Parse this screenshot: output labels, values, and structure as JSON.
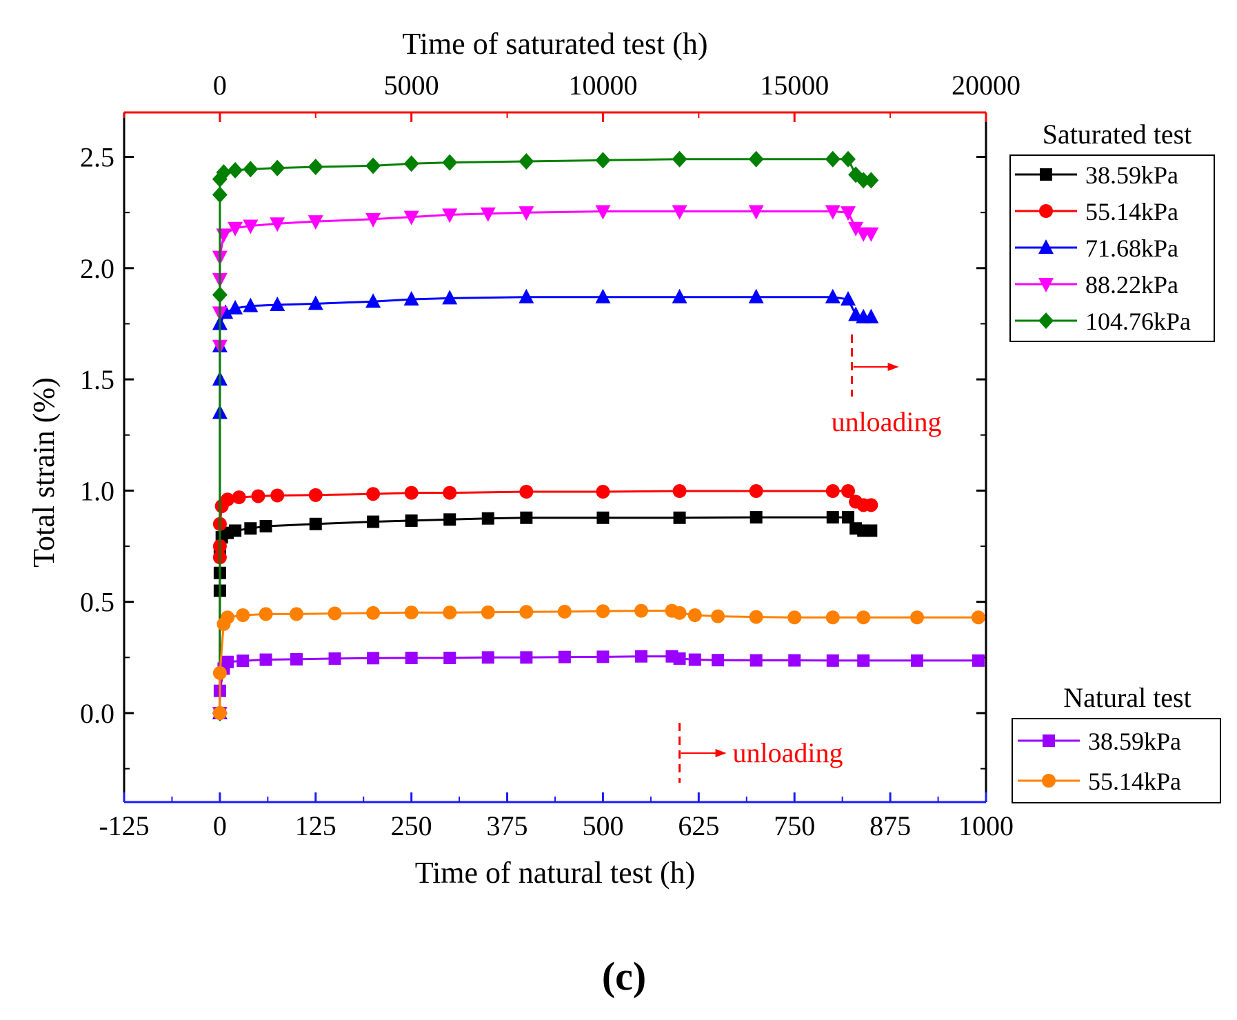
{
  "chart_data": {
    "type": "line",
    "panel_label": "(c)",
    "x_bottom": {
      "title": "Time of natural test  (h)",
      "range": [
        -125,
        1000
      ],
      "ticks": [
        -125,
        0,
        125,
        250,
        375,
        500,
        625,
        750,
        875,
        1000
      ],
      "tick_labels": [
        "-125",
        "0",
        "125",
        "250",
        "375",
        "500",
        "625",
        "750",
        "875",
        "1000"
      ],
      "color": "#1a1aff"
    },
    "x_top": {
      "title": "Time of saturated test  (h)",
      "range": [
        -2500,
        20000
      ],
      "ticks": [
        0,
        5000,
        10000,
        15000,
        20000
      ],
      "tick_labels": [
        "0",
        "5000",
        "10000",
        "15000",
        "20000"
      ],
      "color": "#ff0000"
    },
    "y": {
      "title": "Total strain (%)",
      "range": [
        -0.4,
        2.7
      ],
      "ticks": [
        0.0,
        0.5,
        1.0,
        1.5,
        2.0,
        2.5
      ],
      "tick_labels": [
        "0.0",
        "0.5",
        "1.0",
        "1.5",
        "2.0",
        "2.5"
      ]
    },
    "legend_saturated": {
      "title": "Saturated test",
      "entries": [
        "38.59kPa",
        "55.14kPa",
        "71.68kPa",
        "88.22kPa",
        "104.76kPa"
      ]
    },
    "legend_natural": {
      "title": "Natural test",
      "entries": [
        "38.59kPa",
        "55.14kPa"
      ]
    },
    "annotations": [
      {
        "text": "unloading",
        "axis": "saturated",
        "x": 16500,
        "color": "#ff0000"
      },
      {
        "text": "unloading",
        "axis": "natural",
        "x": 600,
        "color": "#ff0000"
      }
    ],
    "series": [
      {
        "name": "38.59kPa",
        "group": "Saturated test",
        "axis": "top",
        "marker": "square",
        "color": "#000000",
        "points": [
          [
            0,
            0
          ],
          [
            0,
            0.55
          ],
          [
            0,
            0.63
          ],
          [
            0,
            0.72
          ],
          [
            50,
            0.79
          ],
          [
            200,
            0.81
          ],
          [
            400,
            0.82
          ],
          [
            800,
            0.83
          ],
          [
            1200,
            0.84
          ],
          [
            2500,
            0.85
          ],
          [
            4000,
            0.86
          ],
          [
            5000,
            0.865
          ],
          [
            6000,
            0.87
          ],
          [
            7000,
            0.875
          ],
          [
            8000,
            0.878
          ],
          [
            10000,
            0.878
          ],
          [
            12000,
            0.878
          ],
          [
            14000,
            0.88
          ],
          [
            16000,
            0.88
          ],
          [
            16400,
            0.88
          ],
          [
            16600,
            0.83
          ],
          [
            16800,
            0.82
          ],
          [
            17000,
            0.82
          ]
        ]
      },
      {
        "name": "55.14kPa",
        "group": "Saturated test",
        "axis": "top",
        "marker": "circle",
        "color": "#ff0000",
        "points": [
          [
            0,
            0
          ],
          [
            0,
            0.7
          ],
          [
            0,
            0.75
          ],
          [
            0,
            0.85
          ],
          [
            50,
            0.93
          ],
          [
            200,
            0.96
          ],
          [
            500,
            0.97
          ],
          [
            1000,
            0.975
          ],
          [
            1500,
            0.978
          ],
          [
            2500,
            0.98
          ],
          [
            4000,
            0.985
          ],
          [
            5000,
            0.99
          ],
          [
            6000,
            0.99
          ],
          [
            8000,
            0.995
          ],
          [
            10000,
            0.995
          ],
          [
            12000,
            0.998
          ],
          [
            14000,
            0.998
          ],
          [
            16000,
            0.998
          ],
          [
            16400,
            0.998
          ],
          [
            16600,
            0.95
          ],
          [
            16800,
            0.935
          ],
          [
            17000,
            0.935
          ]
        ]
      },
      {
        "name": "71.68kPa",
        "group": "Saturated test",
        "axis": "top",
        "marker": "triangle-up",
        "color": "#0000ff",
        "points": [
          [
            0,
            0
          ],
          [
            0,
            1.35
          ],
          [
            0,
            1.5
          ],
          [
            0,
            1.65
          ],
          [
            0,
            1.75
          ],
          [
            150,
            1.8
          ],
          [
            400,
            1.82
          ],
          [
            800,
            1.83
          ],
          [
            1500,
            1.835
          ],
          [
            2500,
            1.84
          ],
          [
            4000,
            1.85
          ],
          [
            5000,
            1.86
          ],
          [
            6000,
            1.865
          ],
          [
            8000,
            1.87
          ],
          [
            10000,
            1.87
          ],
          [
            12000,
            1.87
          ],
          [
            14000,
            1.87
          ],
          [
            16000,
            1.87
          ],
          [
            16400,
            1.86
          ],
          [
            16600,
            1.79
          ],
          [
            16800,
            1.78
          ],
          [
            17000,
            1.78
          ]
        ]
      },
      {
        "name": "88.22kPa",
        "group": "Saturated test",
        "axis": "top",
        "marker": "triangle-down",
        "color": "#ff00ff",
        "points": [
          [
            0,
            0
          ],
          [
            0,
            1.65
          ],
          [
            0,
            1.8
          ],
          [
            0,
            1.95
          ],
          [
            0,
            2.05
          ],
          [
            100,
            2.15
          ],
          [
            400,
            2.18
          ],
          [
            800,
            2.19
          ],
          [
            1500,
            2.2
          ],
          [
            2500,
            2.21
          ],
          [
            4000,
            2.22
          ],
          [
            5000,
            2.23
          ],
          [
            6000,
            2.24
          ],
          [
            7000,
            2.245
          ],
          [
            8000,
            2.25
          ],
          [
            10000,
            2.255
          ],
          [
            12000,
            2.255
          ],
          [
            14000,
            2.255
          ],
          [
            16000,
            2.255
          ],
          [
            16400,
            2.25
          ],
          [
            16600,
            2.18
          ],
          [
            16800,
            2.155
          ],
          [
            17000,
            2.155
          ]
        ]
      },
      {
        "name": "104.76kPa",
        "group": "Saturated test",
        "axis": "top",
        "marker": "diamond",
        "color": "#008000",
        "points": [
          [
            0,
            0
          ],
          [
            0,
            1.88
          ],
          [
            0,
            2.33
          ],
          [
            0,
            2.4
          ],
          [
            100,
            2.43
          ],
          [
            400,
            2.44
          ],
          [
            800,
            2.445
          ],
          [
            1500,
            2.45
          ],
          [
            2500,
            2.455
          ],
          [
            4000,
            2.46
          ],
          [
            5000,
            2.47
          ],
          [
            6000,
            2.475
          ],
          [
            8000,
            2.48
          ],
          [
            10000,
            2.485
          ],
          [
            12000,
            2.49
          ],
          [
            14000,
            2.49
          ],
          [
            16000,
            2.49
          ],
          [
            16400,
            2.49
          ],
          [
            16600,
            2.42
          ],
          [
            16800,
            2.395
          ],
          [
            17000,
            2.395
          ]
        ]
      },
      {
        "name": "38.59kPa",
        "group": "Natural test",
        "axis": "bottom",
        "marker": "square",
        "color": "#9900ff",
        "points": [
          [
            0,
            0
          ],
          [
            0,
            0.1
          ],
          [
            5,
            0.2
          ],
          [
            10,
            0.23
          ],
          [
            30,
            0.235
          ],
          [
            60,
            0.24
          ],
          [
            100,
            0.242
          ],
          [
            150,
            0.245
          ],
          [
            200,
            0.247
          ],
          [
            250,
            0.248
          ],
          [
            300,
            0.248
          ],
          [
            350,
            0.25
          ],
          [
            400,
            0.25
          ],
          [
            450,
            0.252
          ],
          [
            500,
            0.253
          ],
          [
            550,
            0.255
          ],
          [
            590,
            0.255
          ],
          [
            600,
            0.245
          ],
          [
            620,
            0.24
          ],
          [
            650,
            0.238
          ],
          [
            700,
            0.237
          ],
          [
            750,
            0.237
          ],
          [
            800,
            0.236
          ],
          [
            840,
            0.236
          ],
          [
            910,
            0.236
          ],
          [
            990,
            0.236
          ]
        ]
      },
      {
        "name": "55.14kPa",
        "group": "Natural test",
        "axis": "bottom",
        "marker": "circle",
        "color": "#ff8000",
        "points": [
          [
            0,
            0
          ],
          [
            0,
            0.18
          ],
          [
            5,
            0.4
          ],
          [
            10,
            0.43
          ],
          [
            30,
            0.44
          ],
          [
            60,
            0.445
          ],
          [
            100,
            0.445
          ],
          [
            150,
            0.448
          ],
          [
            200,
            0.45
          ],
          [
            250,
            0.452
          ],
          [
            300,
            0.452
          ],
          [
            350,
            0.453
          ],
          [
            400,
            0.455
          ],
          [
            450,
            0.456
          ],
          [
            500,
            0.458
          ],
          [
            550,
            0.46
          ],
          [
            590,
            0.46
          ],
          [
            600,
            0.45
          ],
          [
            620,
            0.44
          ],
          [
            650,
            0.435
          ],
          [
            700,
            0.432
          ],
          [
            750,
            0.43
          ],
          [
            800,
            0.43
          ],
          [
            840,
            0.43
          ],
          [
            910,
            0.43
          ],
          [
            990,
            0.43
          ]
        ]
      }
    ]
  }
}
